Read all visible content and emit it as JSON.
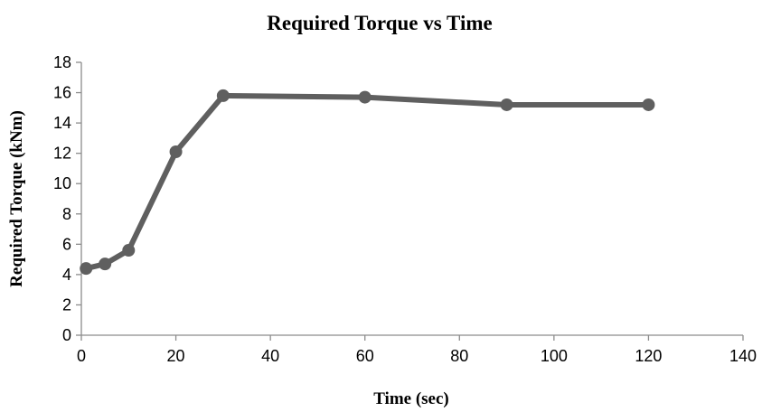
{
  "chart_data": {
    "type": "line",
    "title": "Required Torque vs Time",
    "xlabel": "Time (sec)",
    "ylabel": "Required Torque (kNm)",
    "xlim": [
      0,
      140
    ],
    "ylim": [
      0,
      18
    ],
    "x_ticks": [
      "0",
      "20",
      "40",
      "60",
      "80",
      "100",
      "120",
      "140"
    ],
    "y_ticks": [
      "0",
      "2",
      "4",
      "6",
      "8",
      "10",
      "12",
      "14",
      "16",
      "18"
    ],
    "x_tick_values": [
      0,
      20,
      40,
      60,
      80,
      100,
      120,
      140
    ],
    "y_tick_values": [
      0,
      2,
      4,
      6,
      8,
      10,
      12,
      14,
      16,
      18
    ],
    "grid": false,
    "legend": "none",
    "series": [
      {
        "color": "#5f5f5f",
        "x": [
          1,
          5,
          10,
          20,
          30,
          60,
          90,
          120
        ],
        "y": [
          4.4,
          4.7,
          5.6,
          12.1,
          15.8,
          15.7,
          15.2,
          15.2
        ]
      }
    ]
  }
}
